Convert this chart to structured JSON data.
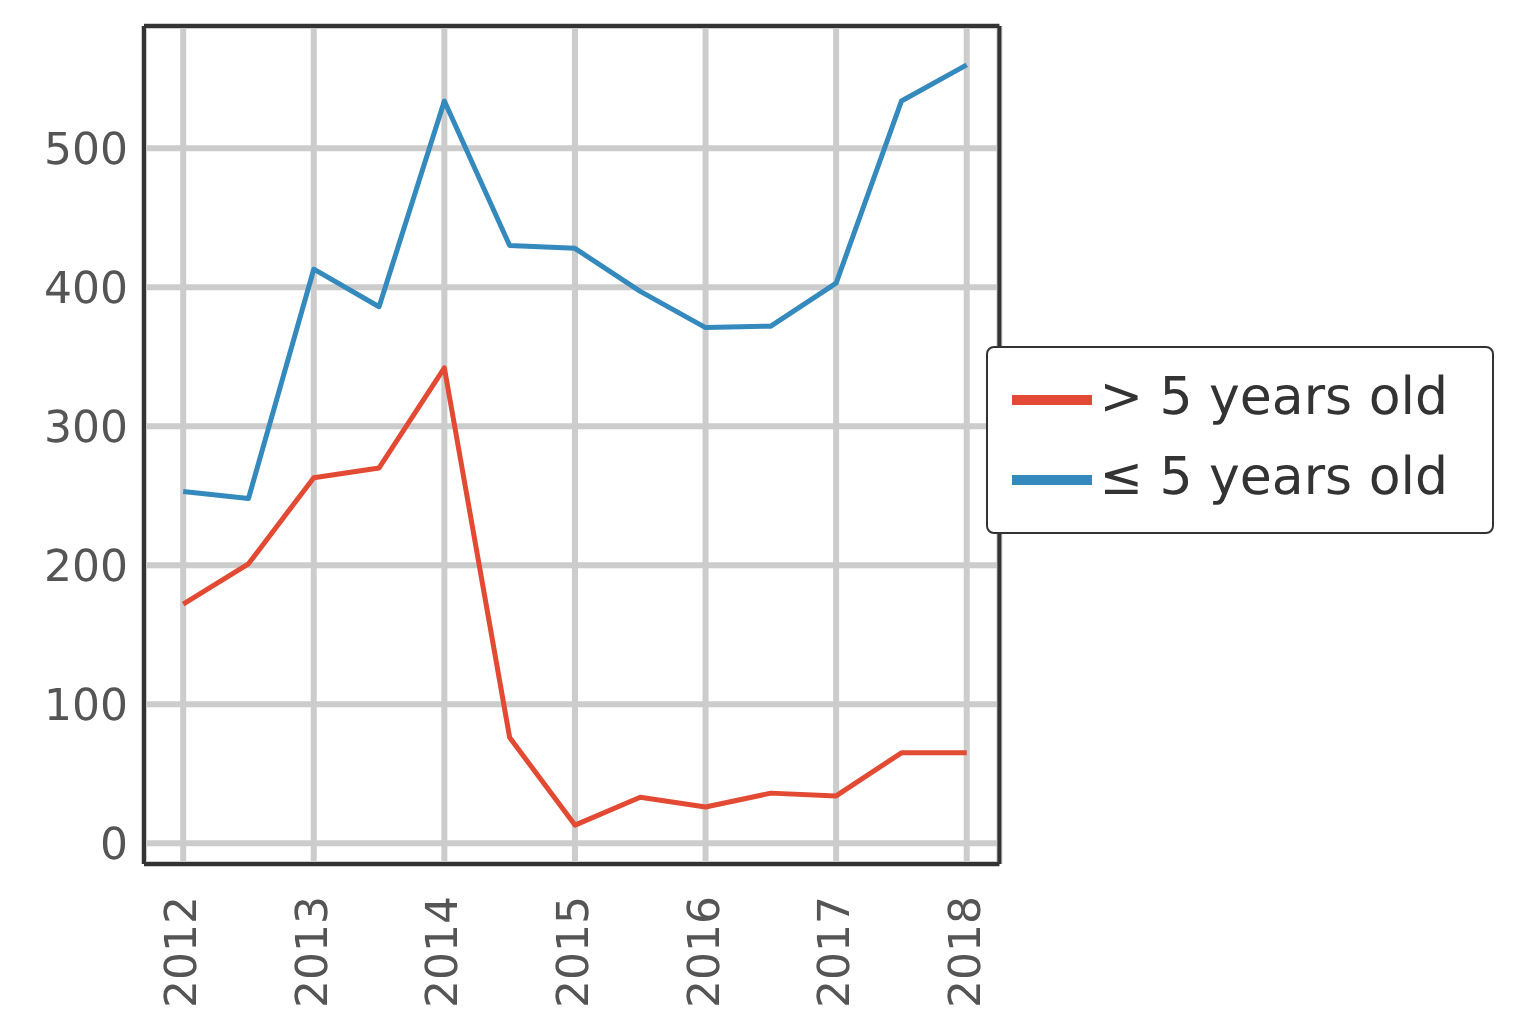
{
  "chart_data": {
    "type": "line",
    "x": [
      2012,
      2012.5,
      2013,
      2013.5,
      2014,
      2014.5,
      2015,
      2015.5,
      2016,
      2016.5,
      2017,
      2017.5,
      2018
    ],
    "series": [
      {
        "name": "> 5 years old",
        "color": "#e24a33",
        "values": [
          172,
          201,
          263,
          270,
          342,
          76,
          13,
          33,
          26,
          36,
          34,
          65,
          65
        ]
      },
      {
        "name": "≤ 5 years old",
        "color": "#348abd",
        "values": [
          253,
          248,
          413,
          386,
          534,
          430,
          428,
          397,
          371,
          372,
          403,
          534,
          560
        ]
      }
    ],
    "xlim": [
      2011.7,
      2018.25
    ],
    "xticks": [
      2012,
      2013,
      2014,
      2015,
      2016,
      2017,
      2018
    ],
    "ylim": [
      -15,
      588
    ],
    "yticks": [
      0,
      100,
      200,
      300,
      400,
      500
    ],
    "grid": true,
    "legend": "right",
    "marker": "none",
    "line_style": "solid"
  }
}
